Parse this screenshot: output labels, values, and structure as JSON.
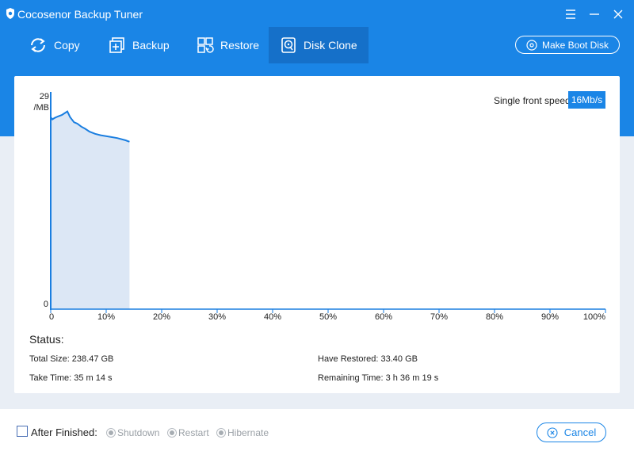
{
  "app": {
    "title": "Cocosenor Backup Tuner"
  },
  "toolbar": {
    "items": [
      {
        "label": "Copy",
        "icon": "copy-icon",
        "active": false
      },
      {
        "label": "Backup",
        "icon": "backup-icon",
        "active": false
      },
      {
        "label": "Restore",
        "icon": "restore-icon",
        "active": false
      },
      {
        "label": "Disk Clone",
        "icon": "disk-clone-icon",
        "active": true
      }
    ],
    "boot_label": "Make Boot Disk"
  },
  "speed": {
    "label": "Single front speed",
    "value": "16Mb/s"
  },
  "chart_data": {
    "type": "area",
    "y_max_label": "29",
    "y_unit_label": "/MB",
    "y_min_label": "0",
    "ylim": [
      0,
      29
    ],
    "xlim": [
      0,
      100
    ],
    "x_ticks": [
      "0",
      "10%",
      "20%",
      "30%",
      "40%",
      "50%",
      "60%",
      "70%",
      "80%",
      "90%",
      "100%"
    ],
    "series": [
      {
        "x": [
          0,
          0.3,
          0.7,
          1.3,
          2.0,
          2.6,
          3.0,
          3.5,
          4.2,
          4.8,
          5.5,
          6.2,
          7.0,
          8.0,
          9.0,
          10.5,
          12.0,
          13.5,
          14.2
        ],
        "y": [
          26.6,
          26.3,
          26.5,
          26.7,
          26.9,
          27.2,
          27.4,
          26.6,
          25.9,
          25.7,
          25.3,
          25.0,
          24.6,
          24.3,
          24.1,
          23.9,
          23.7,
          23.4,
          23.2
        ]
      }
    ],
    "colors": {
      "line": "#1a7ee0",
      "fill": "#dce7f5"
    }
  },
  "status": {
    "title": "Status:",
    "total_size": "Total Size: 238.47 GB",
    "have_restored": "Have Restored: 33.40 GB",
    "take_time": "Take Time: 35 m 14 s",
    "remaining_time": "Remaining Time: 3 h 36 m 19 s"
  },
  "footer": {
    "after_label": "After Finished:",
    "options": [
      "Shutdown",
      "Restart",
      "Hibernate"
    ],
    "cancel_label": "Cancel"
  }
}
